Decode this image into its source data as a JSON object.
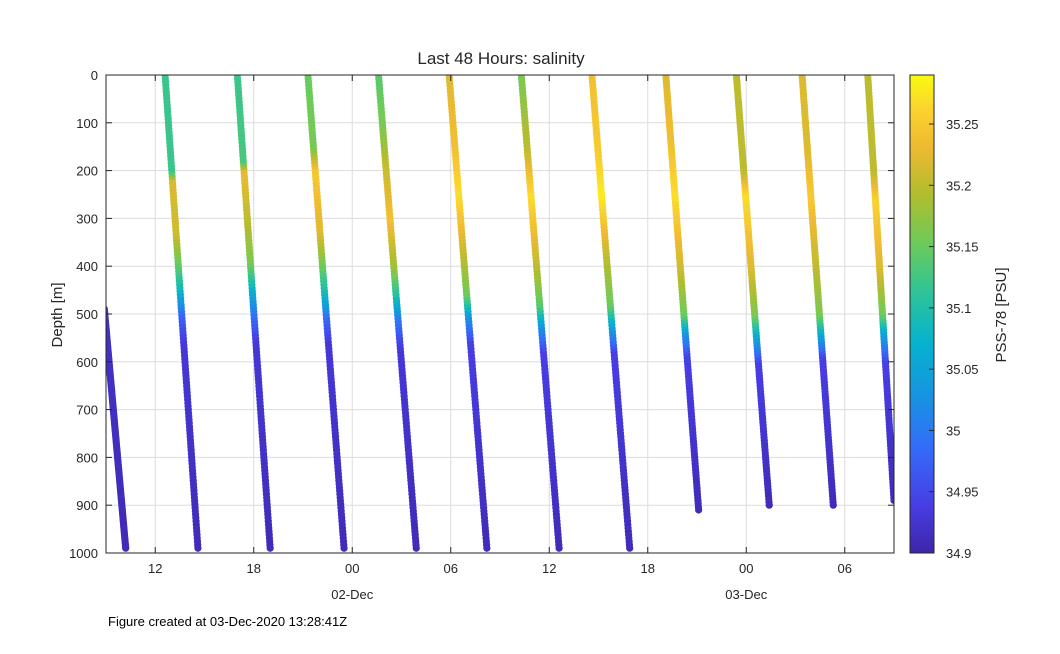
{
  "chart_data": {
    "type": "scatter",
    "title": "Last 48 Hours: salinity",
    "ylabel": "Depth [m]",
    "xlabel": "",
    "x_units": "hours since 01-Dec-2020 09:00Z",
    "xlim": [
      0,
      48
    ],
    "ylim": [
      0,
      1000
    ],
    "y_reversed": true,
    "grid": true,
    "y_ticks": [
      0,
      100,
      200,
      300,
      400,
      500,
      600,
      700,
      800,
      900,
      1000
    ],
    "x_ticks": [
      {
        "x": 3,
        "label": "12"
      },
      {
        "x": 9,
        "label": "18"
      },
      {
        "x": 15,
        "label": "00"
      },
      {
        "x": 21,
        "label": "06"
      },
      {
        "x": 27,
        "label": "12"
      },
      {
        "x": 33,
        "label": "18"
      },
      {
        "x": 39,
        "label": "00"
      },
      {
        "x": 45,
        "label": "06"
      }
    ],
    "date_labels": [
      {
        "x": 15,
        "label": "02-Dec"
      },
      {
        "x": 39,
        "label": "03-Dec"
      }
    ],
    "colorbar": {
      "label": "PSS-78 [PSU]",
      "min": 34.9,
      "max": 35.29,
      "ticks": [
        "34.9",
        "34.95",
        "35",
        "35.05",
        "35.1",
        "35.15",
        "35.2",
        "35.25"
      ],
      "colormap": "parula"
    },
    "profiles": [
      {
        "direction": "down",
        "t0": -0.1,
        "t1": 1.2,
        "z0": 490,
        "z1": 990,
        "sal": [
          [
            490,
            34.92
          ],
          [
            990,
            34.91
          ]
        ]
      },
      {
        "direction": "up",
        "t0": 5.6,
        "t1": 3.6,
        "z0": 990,
        "z1": 0,
        "sal": [
          [
            0,
            35.12
          ],
          [
            200,
            35.12
          ],
          [
            220,
            35.22
          ],
          [
            330,
            35.21
          ],
          [
            400,
            35.14
          ],
          [
            450,
            35.08
          ],
          [
            500,
            34.98
          ],
          [
            560,
            34.93
          ],
          [
            990,
            34.91
          ]
        ]
      },
      {
        "direction": "up",
        "t0": 10.0,
        "t1": 8.0,
        "z0": 990,
        "z1": 0,
        "sal": [
          [
            0,
            35.12
          ],
          [
            180,
            35.13
          ],
          [
            200,
            35.23
          ],
          [
            300,
            35.2
          ],
          [
            390,
            35.16
          ],
          [
            450,
            35.07
          ],
          [
            500,
            34.99
          ],
          [
            560,
            34.93
          ],
          [
            990,
            34.91
          ]
        ]
      },
      {
        "direction": "up",
        "t0": 14.5,
        "t1": 12.3,
        "z0": 990,
        "z1": 0,
        "sal": [
          [
            0,
            35.15
          ],
          [
            150,
            35.16
          ],
          [
            200,
            35.25
          ],
          [
            330,
            35.22
          ],
          [
            400,
            35.15
          ],
          [
            460,
            35.08
          ],
          [
            510,
            34.98
          ],
          [
            560,
            34.93
          ],
          [
            990,
            34.91
          ]
        ]
      },
      {
        "direction": "up",
        "t0": 18.9,
        "t1": 16.6,
        "z0": 990,
        "z1": 0,
        "sal": [
          [
            0,
            35.14
          ],
          [
            100,
            35.16
          ],
          [
            200,
            35.21
          ],
          [
            300,
            35.24
          ],
          [
            400,
            35.18
          ],
          [
            460,
            35.1
          ],
          [
            510,
            35.0
          ],
          [
            570,
            34.93
          ],
          [
            990,
            34.91
          ]
        ]
      },
      {
        "direction": "up",
        "t0": 23.2,
        "t1": 20.9,
        "z0": 990,
        "z1": 0,
        "sal": [
          [
            0,
            35.22
          ],
          [
            150,
            35.24
          ],
          [
            250,
            35.27
          ],
          [
            380,
            35.2
          ],
          [
            460,
            35.15
          ],
          [
            510,
            35.02
          ],
          [
            560,
            34.94
          ],
          [
            990,
            34.91
          ]
        ]
      },
      {
        "direction": "up",
        "t0": 27.6,
        "t1": 25.3,
        "z0": 990,
        "z1": 0,
        "sal": [
          [
            0,
            35.16
          ],
          [
            150,
            35.2
          ],
          [
            250,
            35.27
          ],
          [
            400,
            35.2
          ],
          [
            480,
            35.14
          ],
          [
            530,
            35.02
          ],
          [
            580,
            34.94
          ],
          [
            990,
            34.91
          ]
        ]
      },
      {
        "direction": "up",
        "t0": 31.9,
        "t1": 29.6,
        "z0": 990,
        "z1": 0,
        "sal": [
          [
            0,
            35.24
          ],
          [
            150,
            35.25
          ],
          [
            250,
            35.28
          ],
          [
            380,
            35.2
          ],
          [
            480,
            35.15
          ],
          [
            530,
            35.04
          ],
          [
            580,
            34.94
          ],
          [
            990,
            34.91
          ]
        ]
      },
      {
        "direction": "up",
        "t0": 36.1,
        "t1": 34.1,
        "z0": 910,
        "z1": 0,
        "sal": [
          [
            0,
            35.22
          ],
          [
            150,
            35.24
          ],
          [
            250,
            35.27
          ],
          [
            400,
            35.21
          ],
          [
            500,
            35.15
          ],
          [
            540,
            35.03
          ],
          [
            590,
            34.94
          ],
          [
            910,
            34.91
          ]
        ]
      },
      {
        "direction": "up",
        "t0": 40.4,
        "t1": 38.4,
        "z0": 900,
        "z1": 0,
        "sal": [
          [
            0,
            35.2
          ],
          [
            200,
            35.2
          ],
          [
            250,
            35.27
          ],
          [
            400,
            35.22
          ],
          [
            500,
            35.16
          ],
          [
            550,
            35.05
          ],
          [
            600,
            34.94
          ],
          [
            900,
            34.91
          ]
        ]
      },
      {
        "direction": "up",
        "t0": 44.3,
        "t1": 42.4,
        "z0": 900,
        "z1": 0,
        "sal": [
          [
            0,
            35.22
          ],
          [
            150,
            35.22
          ],
          [
            250,
            35.25
          ],
          [
            400,
            35.2
          ],
          [
            500,
            35.16
          ],
          [
            540,
            35.06
          ],
          [
            590,
            34.94
          ],
          [
            900,
            34.91
          ]
        ]
      },
      {
        "direction": "up",
        "t0": 48.0,
        "t1": 46.4,
        "z0": 890,
        "z1": 0,
        "sal": [
          [
            0,
            35.2
          ],
          [
            200,
            35.2
          ],
          [
            260,
            35.26
          ],
          [
            400,
            35.22
          ],
          [
            500,
            35.15
          ],
          [
            540,
            35.05
          ],
          [
            600,
            34.94
          ],
          [
            890,
            34.91
          ]
        ]
      }
    ]
  },
  "footer": {
    "text": "Figure created at 03-Dec-2020 13:28:41Z"
  }
}
